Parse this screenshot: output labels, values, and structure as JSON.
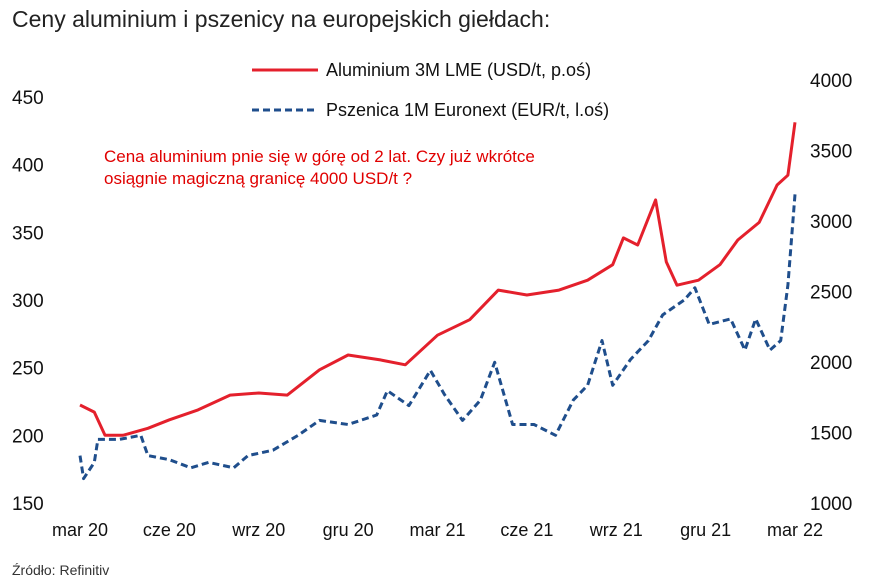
{
  "chart_data": {
    "type": "line",
    "title": "Ceny aluminium i pszenicy na europejskich giełdach:",
    "source": "Źródło: Refinitiv",
    "annotation": [
      "Cena aluminium pnie się w górę od 2 lat.  Czy już wkrótce",
      "osiągnie magiczną granicę 4000 USD/t ?"
    ],
    "x_ticks": [
      {
        "x": 2020.17,
        "label": "mar 20"
      },
      {
        "x": 2020.42,
        "label": "cze 20"
      },
      {
        "x": 2020.67,
        "label": "wrz 20"
      },
      {
        "x": 2020.92,
        "label": "gru 20"
      },
      {
        "x": 2021.17,
        "label": "mar 21"
      },
      {
        "x": 2021.42,
        "label": "cze 21"
      },
      {
        "x": 2021.67,
        "label": "wrz 21"
      },
      {
        "x": 2021.92,
        "label": "gru 21"
      },
      {
        "x": 2022.17,
        "label": "mar 22"
      }
    ],
    "xlim": [
      2020.17,
      2022.17
    ],
    "y_left": {
      "ticks": [
        150,
        200,
        250,
        300,
        350,
        400,
        450
      ],
      "ylim": [
        150,
        450
      ]
    },
    "y_right": {
      "ticks": [
        1000,
        1500,
        2000,
        2500,
        3000,
        3500,
        4000
      ],
      "ylim": [
        1000,
        4000
      ]
    },
    "grid": false,
    "legend_position": "top",
    "series": [
      {
        "name": "Aluminium 3M LME (USD/t, p.oś)",
        "axis": "right",
        "color": "#e4202c",
        "style": "solid",
        "x": [
          2020.17,
          2020.21,
          2020.24,
          2020.29,
          2020.36,
          2020.42,
          2020.5,
          2020.59,
          2020.67,
          2020.75,
          2020.84,
          2020.92,
          2021.01,
          2021.08,
          2021.17,
          2021.26,
          2021.34,
          2021.42,
          2021.51,
          2021.59,
          2021.66,
          2021.69,
          2021.73,
          2021.78,
          2021.81,
          2021.84,
          2021.9,
          2021.96,
          2022.01,
          2022.07,
          2022.12,
          2022.15,
          2022.17
        ],
        "y": [
          1695,
          1645,
          1480,
          1480,
          1530,
          1590,
          1660,
          1765,
          1780,
          1765,
          1945,
          2050,
          2015,
          1980,
          2190,
          2300,
          2510,
          2475,
          2510,
          2580,
          2690,
          2880,
          2830,
          3150,
          2710,
          2545,
          2580,
          2690,
          2865,
          2990,
          3255,
          3325,
          3700
        ]
      },
      {
        "name": "Pszenica 1M Euronext (EUR/t, l.oś)",
        "axis": "left",
        "color": "#1f4e8c",
        "style": "dashed",
        "x": [
          2020.17,
          2020.18,
          2020.21,
          2020.22,
          2020.28,
          2020.34,
          2020.36,
          2020.42,
          2020.48,
          2020.53,
          2020.6,
          2020.64,
          2020.71,
          2020.78,
          2020.84,
          2020.92,
          2021.0,
          2021.03,
          2021.09,
          2021.15,
          2021.19,
          2021.24,
          2021.29,
          2021.33,
          2021.38,
          2021.44,
          2021.5,
          2021.55,
          2021.59,
          2021.63,
          2021.66,
          2021.71,
          2021.76,
          2021.8,
          2021.86,
          2021.89,
          2021.93,
          2021.99,
          2022.03,
          2022.06,
          2022.1,
          2022.13,
          2022.15,
          2022.17
        ],
        "y": [
          185,
          168,
          180,
          197,
          197,
          200,
          185,
          182,
          176,
          180,
          176,
          185,
          189,
          200,
          211,
          208,
          215,
          233,
          222,
          248,
          230,
          211,
          226,
          254,
          208,
          208,
          200,
          226,
          237,
          270,
          237,
          256,
          270,
          289,
          300,
          309,
          282,
          286,
          263,
          286,
          263,
          270,
          311,
          378
        ]
      }
    ]
  }
}
